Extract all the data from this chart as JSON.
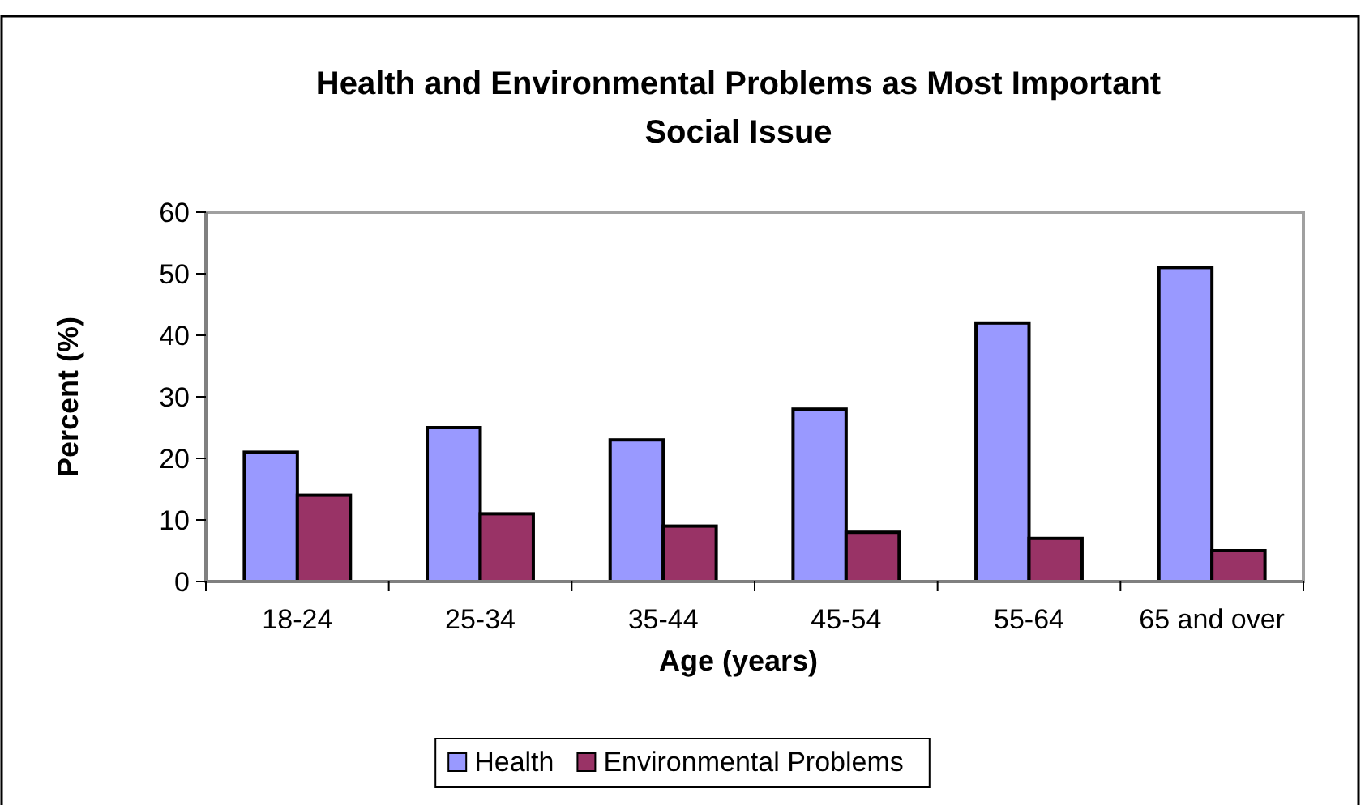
{
  "chart_data": {
    "type": "bar",
    "title": "Health and Environmental Problems as Most Important Social Issue",
    "xlabel": "Age (years)",
    "ylabel": "Percent (%)",
    "categories": [
      "18-24",
      "25-34",
      "35-44",
      "45-54",
      "55-64",
      "65 and over"
    ],
    "series": [
      {
        "name": "Health",
        "color": "#9999ff",
        "values": [
          21,
          25,
          23,
          28,
          42,
          51
        ]
      },
      {
        "name": "Environmental Problems",
        "color": "#993366",
        "values": [
          14,
          11,
          9,
          8,
          7,
          5
        ]
      }
    ],
    "ylim": [
      0,
      60
    ],
    "yticks": [
      0,
      10,
      20,
      30,
      40,
      50,
      60
    ],
    "grid": false,
    "legend": "bottom"
  }
}
